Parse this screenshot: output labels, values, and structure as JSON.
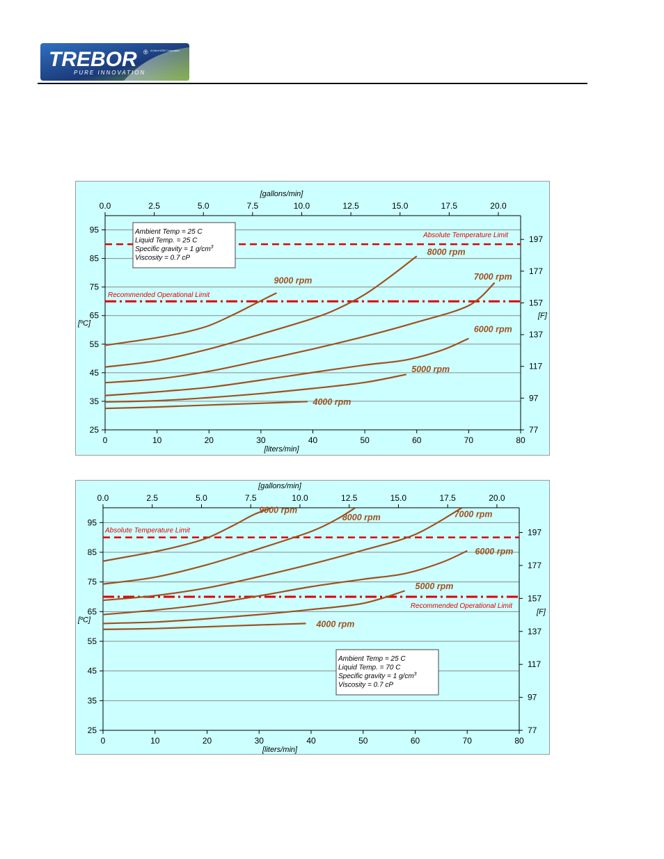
{
  "brand": {
    "name": "TREBOR",
    "tagline": "PURE INNOVATION",
    "registered": "®",
    "subtext": "A Unit of IDEX Corporation",
    "colors": {
      "navy": "#1b3a78",
      "blue": "#2f6fc0",
      "green": "#6a9a2a",
      "silver": "#dfe6ee"
    }
  },
  "colors": {
    "background": "#ccffff",
    "curve": "#a0501e",
    "limit": "#e00000",
    "grid": "#8a8a8a"
  },
  "chart_data": [
    {
      "type": "line",
      "top_axis": {
        "label": "[gallons/min]",
        "ticks": [
          "0.0",
          "2.5",
          "5.0",
          "7.5",
          "10.0",
          "12.5",
          "15.0",
          "17.5",
          "20.0"
        ],
        "tick_values": [
          0,
          2.5,
          5,
          7.5,
          10,
          12.5,
          15,
          17.5,
          20
        ],
        "range": [
          0,
          21.134
        ]
      },
      "xlabel": "[liters/min]",
      "xlim": [
        0,
        80
      ],
      "xticks": [
        0,
        10,
        20,
        30,
        40,
        50,
        60,
        70,
        80
      ],
      "ylabel": "[ºC]",
      "ylim": [
        25,
        100
      ],
      "yticks": [
        25,
        35,
        45,
        55,
        65,
        75,
        85,
        95
      ],
      "y2label": "[F]",
      "y2ticks": [
        77,
        97,
        117,
        137,
        157,
        177,
        197
      ],
      "grid": "horizontal",
      "notes": [
        "Ambient Temp = 25 C",
        "Liquid Temp. = 25 C",
        "Specific gravity = 1 g/cm",
        "Viscosity = 0.7 cP"
      ],
      "notes_position": "top-left",
      "limits": [
        {
          "label": "Absolute Temperature Limit",
          "y": 90,
          "style": "dashed"
        },
        {
          "label": "Recommended Operational  Limit",
          "y": 70,
          "style": "dash-dot"
        }
      ],
      "series": [
        {
          "name": "4000 rpm",
          "x": [
            0,
            10,
            20,
            30,
            39
          ],
          "y": [
            32.5,
            33,
            33.7,
            34.3,
            34.9
          ]
        },
        {
          "name": "5000 rpm",
          "x": [
            0,
            10,
            20,
            30,
            40,
            50,
            58
          ],
          "y": [
            34.8,
            35.2,
            36.3,
            37.7,
            39.5,
            41.6,
            44.4
          ]
        },
        {
          "name": "6000 rpm",
          "x": [
            0,
            10,
            20,
            30,
            40,
            50,
            58,
            65,
            70
          ],
          "y": [
            37,
            38.3,
            39.9,
            42.4,
            45.1,
            47.7,
            49.5,
            53,
            57
          ]
        },
        {
          "name": "7000 rpm",
          "x": [
            0,
            10,
            20,
            30,
            40,
            50,
            60,
            70,
            75
          ],
          "y": [
            41.5,
            42.8,
            45.5,
            49.3,
            53.3,
            57.7,
            62.7,
            68.5,
            76.5
          ]
        },
        {
          "name": "8000 rpm",
          "x": [
            0,
            10,
            20,
            30,
            40,
            45,
            50,
            55,
            60
          ],
          "y": [
            47,
            49.2,
            53.3,
            58.5,
            64,
            67.6,
            72.4,
            78.8,
            85.8
          ]
        },
        {
          "name": "9000 rpm",
          "x": [
            0,
            5,
            10,
            15,
            20,
            25,
            30,
            33
          ],
          "y": [
            54.6,
            55.9,
            57.3,
            59,
            61.5,
            65.6,
            70.2,
            72.9
          ]
        }
      ],
      "series_labels": {
        "4000 rpm": [
          40,
          33.8
        ],
        "5000 rpm": [
          59,
          45.2
        ],
        "6000 rpm": [
          71,
          59.2
        ],
        "7000 rpm": [
          71,
          77.6
        ],
        "8000 rpm": [
          62,
          86.2
        ],
        "9000 rpm": [
          32.5,
          76.2
        ]
      }
    },
    {
      "type": "line",
      "top_axis": {
        "label": "[gallons/min]",
        "ticks": [
          "0.0",
          "2.5",
          "5.0",
          "7.5",
          "10.0",
          "12.5",
          "15.0",
          "17.5",
          "20.0"
        ],
        "tick_values": [
          0,
          2.5,
          5,
          7.5,
          10,
          12.5,
          15,
          17.5,
          20
        ],
        "range": [
          0,
          21.134
        ]
      },
      "xlabel": "[liters/min]",
      "xlim": [
        0,
        80
      ],
      "xticks": [
        0,
        10,
        20,
        30,
        40,
        50,
        60,
        70,
        80
      ],
      "ylabel": "[ºC]",
      "ylim": [
        25,
        100
      ],
      "yticks": [
        25,
        35,
        45,
        55,
        65,
        75,
        85,
        95
      ],
      "y2label": "[F]",
      "y2ticks": [
        77,
        97,
        117,
        137,
        157,
        177,
        197
      ],
      "grid": "horizontal",
      "notes": [
        "Ambient Temp = 25 C",
        "Liquid Temp. = 70 C",
        "Specific gravity = 1 g/cm",
        "Viscosity = 0.7 cP"
      ],
      "notes_position": "bottom-right",
      "limits": [
        {
          "label": "Absolute Temperature Limit",
          "y": 90,
          "style": "dashed"
        },
        {
          "label": "Recommended Operational  Limit",
          "y": 70,
          "style": "dash-dot"
        }
      ],
      "series": [
        {
          "name": "4000 rpm",
          "x": [
            0,
            10,
            20,
            30,
            39
          ],
          "y": [
            59,
            59.3,
            59.9,
            60.5,
            61
          ]
        },
        {
          "name": "5000 rpm",
          "x": [
            0,
            10,
            20,
            30,
            40,
            50,
            58
          ],
          "y": [
            61,
            61.5,
            62.6,
            64,
            65.7,
            67.8,
            72
          ]
        },
        {
          "name": "6000 rpm",
          "x": [
            0,
            10,
            20,
            30,
            40,
            50,
            58,
            65,
            70
          ],
          "y": [
            64,
            65.5,
            67.5,
            70.3,
            73.4,
            75.9,
            77.8,
            81.5,
            85.5
          ]
        },
        {
          "name": "7000 rpm",
          "x": [
            0,
            10,
            20,
            30,
            40,
            50,
            60,
            69
          ],
          "y": [
            68.8,
            70.4,
            73,
            76.8,
            81,
            85.7,
            91,
            100
          ]
        },
        {
          "name": "8000 rpm",
          "x": [
            0,
            10,
            20,
            30,
            40,
            45,
            48.5
          ],
          "y": [
            74.3,
            76.6,
            80.8,
            86.2,
            92,
            96.2,
            100
          ]
        },
        {
          "name": "9000 rpm",
          "x": [
            0,
            5,
            10,
            15,
            20,
            25,
            29,
            32.5
          ],
          "y": [
            82,
            83.6,
            85.2,
            87.2,
            89.8,
            94,
            97.7,
            100
          ]
        }
      ],
      "series_labels": {
        "4000 rpm": [
          41,
          59.8
        ],
        "5000 rpm": [
          60,
          72.6
        ],
        "6000 rpm": [
          71.5,
          84.3
        ],
        "7000 rpm": [
          67.5,
          96.8
        ],
        "8000 rpm": [
          46,
          95.8
        ],
        "9000 rpm": [
          30,
          98.3
        ]
      }
    }
  ]
}
